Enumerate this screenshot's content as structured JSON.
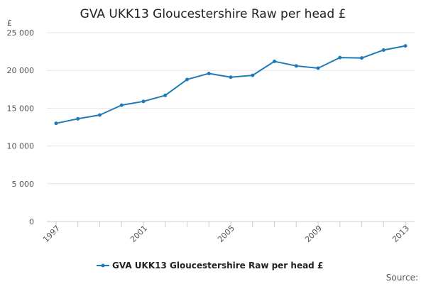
{
  "chart_data": {
    "type": "line",
    "title": "GVA UKK13 Gloucestershire Raw per head £",
    "ylabel": "£",
    "xlabel": "",
    "ylim": [
      0,
      25000
    ],
    "y_ticks": [
      0,
      5000,
      10000,
      15000,
      20000,
      25000
    ],
    "y_tick_labels": [
      "0",
      "5 000",
      "10 000",
      "15 000",
      "20 000",
      "25 000"
    ],
    "x_tick_labels": [
      "1997",
      "2001",
      "2005",
      "2009",
      "2013"
    ],
    "grid": true,
    "legend_position": "bottom",
    "series": [
      {
        "name": "GVA UKK13 Gloucestershire Raw per head £",
        "color": "#1f7ab8",
        "x": [
          1997,
          1998,
          1999,
          2000,
          2001,
          2002,
          2003,
          2004,
          2005,
          2006,
          2007,
          2008,
          2009,
          2010,
          2011,
          2012,
          2013
        ],
        "values": [
          13000,
          13600,
          14100,
          15400,
          15900,
          16700,
          18800,
          19600,
          19100,
          19350,
          21200,
          20600,
          20300,
          21700,
          21650,
          22700,
          23250
        ]
      }
    ]
  },
  "source_label": "Source:"
}
